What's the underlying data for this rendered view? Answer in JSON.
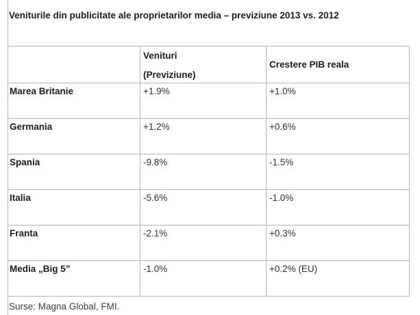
{
  "title": "Veniturile din publicitate ale proprietarilor media – previziune 2013 vs. 2012",
  "table": {
    "header": {
      "country": "",
      "venituri_line1": "Venituri",
      "venituri_line2": "(Previziune)",
      "pib": "Crestere PIB reala"
    },
    "rows": [
      {
        "label": "Marea Britanie",
        "venituri": "+1.9%",
        "pib": "+1.0%"
      },
      {
        "label": "Germania",
        "venituri": "+1.2%",
        "pib": "+0.6%"
      },
      {
        "label": "Spania",
        "venituri": "-9.8%",
        "pib": "-1.5%"
      },
      {
        "label": "Italia",
        "venituri": "-5.6%",
        "pib": "-1.0%"
      },
      {
        "label": "Franta",
        "venituri": "-2.1%",
        "pib": "+0.3%"
      },
      {
        "label": "Media „Big 5”",
        "venituri": "-1.0%",
        "pib": "+0.2% (EU)"
      }
    ]
  },
  "source": "Surse: Magna Global, FMI.",
  "colors": {
    "border": "#b3b3b3",
    "text_bold": "#1b1b1b",
    "text_value": "#2e2e2e",
    "text_source": "#3d3d3d",
    "background": "#ffffff"
  }
}
